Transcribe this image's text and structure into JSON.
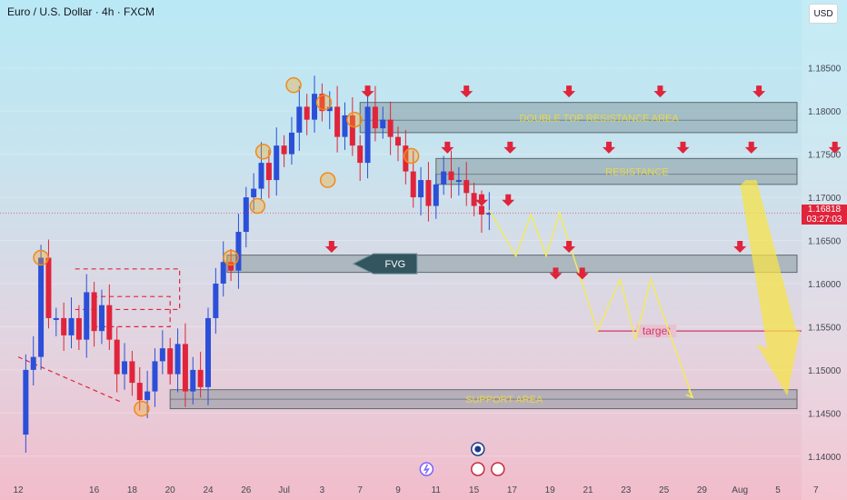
{
  "header": {
    "title": "Euro / U.S. Dollar · 4h · FXCM",
    "currency": "USD"
  },
  "price_tag": {
    "price": "1.16818",
    "countdown": "03:27:03"
  },
  "chart_data": {
    "type": "line",
    "title": "Euro / U.S. Dollar · 4h · FXCM",
    "y_ticks": [
      1.185,
      1.18,
      1.175,
      1.17,
      1.165,
      1.16,
      1.155,
      1.15,
      1.145,
      1.14
    ],
    "y_tick_labels": [
      "1.18500",
      "1.18000",
      "1.17500",
      "1.17000",
      "1.16500",
      "1.16000",
      "1.15500",
      "1.15000",
      "1.14500",
      "1.14000"
    ],
    "ylim": [
      1.1385,
      1.1895
    ],
    "x_ticks": [
      {
        "label": "12",
        "i": 0
      },
      {
        "label": "16",
        "i": 4
      },
      {
        "label": "18",
        "i": 6
      },
      {
        "label": "20",
        "i": 8
      },
      {
        "label": "24",
        "i": 10
      },
      {
        "label": "26",
        "i": 12
      },
      {
        "label": "Jul",
        "i": 14
      },
      {
        "label": "3",
        "i": 16
      },
      {
        "label": "7",
        "i": 18
      },
      {
        "label": "9",
        "i": 20
      },
      {
        "label": "11",
        "i": 22
      },
      {
        "label": "15",
        "i": 24
      },
      {
        "label": "17",
        "i": 26
      },
      {
        "label": "19",
        "i": 28
      },
      {
        "label": "21",
        "i": 30
      },
      {
        "label": "23",
        "i": 32
      },
      {
        "label": "25",
        "i": 34
      },
      {
        "label": "29",
        "i": 36
      },
      {
        "label": "Aug",
        "i": 38
      },
      {
        "label": "5",
        "i": 40
      },
      {
        "label": "7",
        "i": 42
      }
    ],
    "x_count": 43,
    "price_path": [
      [
        0,
        1.1425
      ],
      [
        0.4,
        1.15
      ],
      [
        0.8,
        1.1515
      ],
      [
        1.2,
        1.163
      ],
      [
        1.6,
        1.156
      ],
      [
        2.0,
        1.156
      ],
      [
        2.4,
        1.154
      ],
      [
        2.8,
        1.156
      ],
      [
        3.2,
        1.1535
      ],
      [
        3.6,
        1.159
      ],
      [
        4.0,
        1.1545
      ],
      [
        4.4,
        1.1575
      ],
      [
        4.8,
        1.1535
      ],
      [
        5.2,
        1.1495
      ],
      [
        5.6,
        1.151
      ],
      [
        6.0,
        1.1485
      ],
      [
        6.4,
        1.1465
      ],
      [
        6.8,
        1.1475
      ],
      [
        7.2,
        1.151
      ],
      [
        7.6,
        1.1525
      ],
      [
        8.0,
        1.1495
      ],
      [
        8.4,
        1.153
      ],
      [
        8.8,
        1.1475
      ],
      [
        9.2,
        1.15
      ],
      [
        9.6,
        1.148
      ],
      [
        10.0,
        1.156
      ],
      [
        10.4,
        1.16
      ],
      [
        10.8,
        1.1625
      ],
      [
        11.2,
        1.1615
      ],
      [
        11.6,
        1.166
      ],
      [
        12.0,
        1.17
      ],
      [
        12.4,
        1.171
      ],
      [
        12.8,
        1.174
      ],
      [
        13.2,
        1.172
      ],
      [
        13.6,
        1.176
      ],
      [
        14.0,
        1.175
      ],
      [
        14.4,
        1.1775
      ],
      [
        14.8,
        1.1805
      ],
      [
        15.2,
        1.179
      ],
      [
        15.6,
        1.182
      ],
      [
        16.0,
        1.18
      ],
      [
        16.4,
        1.1805
      ],
      [
        16.8,
        1.177
      ],
      [
        17.2,
        1.1795
      ],
      [
        17.6,
        1.176
      ],
      [
        18.0,
        1.174
      ],
      [
        18.4,
        1.1805
      ],
      [
        18.8,
        1.178
      ],
      [
        19.2,
        1.179
      ],
      [
        19.6,
        1.177
      ],
      [
        20.0,
        1.176
      ],
      [
        20.4,
        1.173
      ],
      [
        20.8,
        1.17
      ],
      [
        21.2,
        1.172
      ],
      [
        21.6,
        1.169
      ],
      [
        22.0,
        1.1715
      ],
      [
        22.4,
        1.173
      ],
      [
        22.8,
        1.172
      ],
      [
        23.2,
        1.172
      ],
      [
        23.6,
        1.1705
      ],
      [
        24.0,
        1.169
      ],
      [
        24.4,
        1.168
      ],
      [
        24.8,
        1.1682
      ]
    ],
    "zones": [
      {
        "name": "double_top_resistance",
        "label": "DOUBLE TOP RESISTANCE AREA",
        "top": 1.181,
        "bottom": 1.1775,
        "from_i": 18
      },
      {
        "name": "resistance",
        "label": "RESISTANCE",
        "top": 1.1745,
        "bottom": 1.1715,
        "from_i": 22
      },
      {
        "name": "fvg",
        "label": "",
        "top": 1.1633,
        "bottom": 1.1613,
        "from_i": 11
      },
      {
        "name": "support",
        "label": "SUPPORT AREA",
        "top": 1.1477,
        "bottom": 1.1455,
        "from_i": 8
      }
    ],
    "fvg_label": "FVG",
    "target": {
      "label": "target",
      "price": 1.1545
    },
    "projection_small": [
      [
        24.8,
        1.1685
      ],
      [
        26.2,
        1.1632
      ],
      [
        27.0,
        1.168
      ],
      [
        27.8,
        1.1632
      ],
      [
        28.5,
        1.1682
      ],
      [
        30.5,
        1.1545
      ],
      [
        31.7,
        1.1605
      ],
      [
        32.5,
        1.1535
      ],
      [
        33.3,
        1.1605
      ],
      [
        35.5,
        1.1468
      ]
    ],
    "projection_big": {
      "from": [
        38.3,
        1.172
      ],
      "to": [
        40.3,
        1.147
      ]
    },
    "current_price": 1.16818,
    "highlight_points": [
      [
        1.2,
        1.163
      ],
      [
        6.5,
        1.1455
      ],
      [
        11.2,
        1.163
      ],
      [
        12.6,
        1.169
      ],
      [
        12.9,
        1.1753
      ],
      [
        14.5,
        1.183
      ],
      [
        16.1,
        1.181
      ],
      [
        16.3,
        1.172
      ],
      [
        17.7,
        1.179
      ],
      [
        20.7,
        1.1748
      ]
    ],
    "arrows_double_top": [
      18.4,
      23.6,
      29.0,
      33.8,
      39.0
    ],
    "arrows_resistance": [
      22.6,
      25.9,
      31.1,
      35.0,
      38.6,
      43.0
    ],
    "arrows_fvg": [
      16.5,
      29.0,
      38.0
    ],
    "arrows_projection": [
      24.4,
      25.8,
      28.3,
      29.7
    ]
  }
}
